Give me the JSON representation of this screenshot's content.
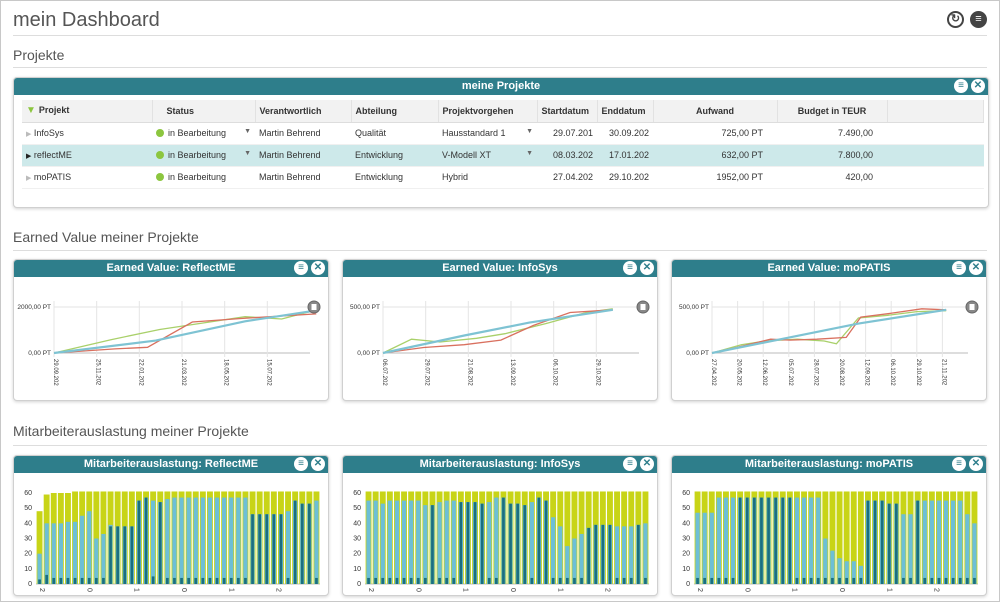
{
  "header": {
    "title": "mein Dashboard"
  },
  "sections": {
    "projects": "Projekte",
    "earned_value": "Earned Value meiner Projekte",
    "utilization": "Mitarbeiterauslastung meiner Projekte"
  },
  "projects_panel": {
    "title": "meine Projekte"
  },
  "table": {
    "columns": [
      "Projekt",
      "Status",
      "Verantwortlich",
      "Abteilung",
      "Projektvorgehen",
      "Startdatum",
      "Enddatum",
      "Aufwand",
      "Budget in TEUR"
    ],
    "rows": [
      {
        "projekt": "InfoSys",
        "status": "in Bearbeitung",
        "verantwortlich": "Martin Behrend",
        "abteilung": "Qualität",
        "vorgehen": "Hausstandard 1",
        "start": "29.07.201",
        "ende": "30.09.202",
        "aufwand": "725,00 PT",
        "budget": "7.490,00"
      },
      {
        "projekt": "reflectME",
        "status": "in Bearbeitung",
        "verantwortlich": "Martin Behrend",
        "abteilung": "Entwicklung",
        "vorgehen": "V-Modell XT",
        "start": "08.03.202",
        "ende": "17.01.202",
        "aufwand": "632,00 PT",
        "budget": "7.800,00"
      },
      {
        "projekt": "moPATIS",
        "status": "in Bearbeitung",
        "verantwortlich": "Martin Behrend",
        "abteilung": "Entwicklung",
        "vorgehen": "Hybrid",
        "start": "27.04.202",
        "ende": "29.10.202",
        "aufwand": "1952,00 PT",
        "budget": "420,00"
      }
    ]
  },
  "colors": {
    "accent": "#2e7e8b",
    "selected_row": "#cde9ea",
    "status_green": "#8cc63f",
    "series_blue": "#7ec3d3",
    "series_green": "#a9d06a",
    "series_red": "#d9705f",
    "util_yellow": "#c8d417",
    "util_light": "#6dbfd6",
    "util_dark": "#1b6f7e"
  },
  "icons": {
    "refresh": "refresh-icon",
    "menu": "menu-icon",
    "close": "close-icon",
    "filter": "filter-icon"
  },
  "ev_charts": [
    {
      "title": "Earned Value: ReflectME",
      "ytick": "2000,00 PT",
      "y0": "0,00 PT",
      "ymax": 2000,
      "xticks": [
        "29.09.202",
        "25.11.202",
        "22.01.202",
        "21.03.202",
        "18.05.202",
        "15.07.202"
      ],
      "x_extent": 6,
      "series": [
        {
          "points": [
            [
              0,
              0
            ],
            [
              1.4,
              580
            ],
            [
              2.6,
              1020
            ],
            [
              3.5,
              1260
            ],
            [
              4.7,
              1580
            ],
            [
              5.6,
              1480
            ],
            [
              6.45,
              1870
            ]
          ]
        },
        {
          "points": [
            [
              0,
              0
            ],
            [
              1.5,
              180
            ],
            [
              2.3,
              250
            ],
            [
              3.4,
              1350
            ],
            [
              4.6,
              1500
            ],
            [
              6.45,
              1700
            ]
          ]
        },
        {
          "points": [
            [
              0,
              0
            ],
            [
              2.5,
              540
            ],
            [
              4.7,
              1380
            ],
            [
              6.45,
              1850
            ]
          ]
        }
      ]
    },
    {
      "title": "Earned Value: InfoSys",
      "ytick": "500,00 PT",
      "y0": "0,00 PT",
      "ymax": 500,
      "xticks": [
        "06.07.202",
        "29.07.202",
        "21.08.202",
        "13.09.202",
        "06.10.202",
        "29.10.202"
      ],
      "x_extent": 6,
      "series": [
        {
          "points": [
            [
              0,
              0
            ],
            [
              0.7,
              150
            ],
            [
              1.4,
              120
            ],
            [
              2.3,
              160
            ],
            [
              3.0,
              210
            ],
            [
              4.0,
              320
            ],
            [
              5.0,
              440
            ],
            [
              5.65,
              480
            ]
          ]
        },
        {
          "points": [
            [
              0,
              0
            ],
            [
              1.0,
              60
            ],
            [
              2.0,
              90
            ],
            [
              2.9,
              140
            ],
            [
              3.7,
              300
            ],
            [
              4.6,
              440
            ],
            [
              5.65,
              470
            ]
          ]
        },
        {
          "points": [
            [
              0,
              0
            ],
            [
              2.0,
              190
            ],
            [
              3.6,
              330
            ],
            [
              5.65,
              470
            ]
          ]
        }
      ]
    },
    {
      "title": "Earned Value: moPATIS",
      "ytick": "500,00 PT",
      "y0": "0,00 PT",
      "ymax": 500,
      "xticks": [
        "27.04.202",
        "20.05.202",
        "12.06.202",
        "05.07.202",
        "28.07.202",
        "20.08.202",
        "12.09.202",
        "06.10.202",
        "29.10.202",
        "21.11.202"
      ],
      "x_extent": 10,
      "series": [
        {
          "points": [
            [
              0,
              0
            ],
            [
              1.2,
              90
            ],
            [
              2.2,
              130
            ],
            [
              3.5,
              150
            ],
            [
              4.6,
              130
            ],
            [
              5.1,
              100
            ],
            [
              6.0,
              380
            ],
            [
              7.2,
              410
            ],
            [
              8.4,
              450
            ],
            [
              9.6,
              460
            ]
          ]
        },
        {
          "points": [
            [
              0,
              0
            ],
            [
              1.0,
              60
            ],
            [
              2.4,
              150
            ],
            [
              3.2,
              140
            ],
            [
              4.3,
              150
            ],
            [
              5.5,
              170
            ],
            [
              6.1,
              390
            ],
            [
              7.3,
              430
            ],
            [
              8.6,
              480
            ],
            [
              9.6,
              470
            ]
          ]
        },
        {
          "points": [
            [
              0,
              0
            ],
            [
              3.0,
              160
            ],
            [
              6.0,
              320
            ],
            [
              9.6,
              470
            ]
          ]
        }
      ]
    }
  ],
  "util_charts": [
    {
      "title": "Mitarbeiterauslastung: ReflectME",
      "yticks": [
        "0",
        "10",
        "20",
        "30",
        "40",
        "50",
        "60"
      ],
      "ymax": 60,
      "xticks": [
        "2",
        "0",
        "1",
        "0",
        "1",
        "2"
      ],
      "bars": [
        [
          48,
          20,
          3
        ],
        [
          59,
          40,
          6
        ],
        [
          60,
          40,
          4
        ],
        [
          60,
          40,
          4
        ],
        [
          60,
          41,
          4
        ],
        [
          61,
          41,
          4
        ],
        [
          61,
          45,
          4
        ],
        [
          61,
          48,
          4
        ],
        [
          61,
          30,
          4
        ],
        [
          61,
          33,
          4
        ],
        [
          61,
          39,
          38
        ],
        [
          61,
          38,
          38
        ],
        [
          61,
          38,
          38
        ],
        [
          61,
          38,
          38
        ],
        [
          61,
          55,
          55
        ],
        [
          61,
          57,
          57
        ],
        [
          61,
          55,
          5
        ],
        [
          61,
          54,
          54
        ],
        [
          61,
          56,
          4
        ],
        [
          61,
          57,
          4
        ],
        [
          61,
          57,
          4
        ],
        [
          61,
          57,
          4
        ],
        [
          61,
          57,
          4
        ],
        [
          61,
          57,
          4
        ],
        [
          61,
          57,
          4
        ],
        [
          61,
          57,
          4
        ],
        [
          61,
          57,
          4
        ],
        [
          61,
          57,
          4
        ],
        [
          61,
          57,
          4
        ],
        [
          61,
          57,
          4
        ],
        [
          61,
          46,
          46
        ],
        [
          61,
          46,
          46
        ],
        [
          61,
          46,
          46
        ],
        [
          61,
          46,
          46
        ],
        [
          61,
          46,
          46
        ],
        [
          61,
          48,
          4
        ],
        [
          61,
          55,
          55
        ],
        [
          61,
          53,
          53
        ],
        [
          61,
          53,
          53
        ],
        [
          61,
          55,
          4
        ]
      ]
    },
    {
      "title": "Mitarbeiterauslastung: InfoSys",
      "yticks": [
        "0",
        "10",
        "20",
        "30",
        "40",
        "50",
        "60"
      ],
      "ymax": 60,
      "xticks": [
        "2",
        "0",
        "1",
        "0",
        "1",
        "2"
      ],
      "bars": [
        [
          61,
          55,
          4
        ],
        [
          61,
          55,
          4
        ],
        [
          61,
          53,
          4
        ],
        [
          61,
          55,
          4
        ],
        [
          61,
          55,
          4
        ],
        [
          61,
          55,
          4
        ],
        [
          61,
          55,
          4
        ],
        [
          61,
          55,
          4
        ],
        [
          61,
          52,
          4
        ],
        [
          61,
          52,
          52
        ],
        [
          61,
          54,
          4
        ],
        [
          61,
          55,
          4
        ],
        [
          61,
          55,
          4
        ],
        [
          61,
          54,
          54
        ],
        [
          61,
          54,
          54
        ],
        [
          61,
          54,
          54
        ],
        [
          61,
          53,
          53
        ],
        [
          61,
          54,
          4
        ],
        [
          61,
          57,
          4
        ],
        [
          61,
          57,
          57
        ],
        [
          61,
          53,
          53
        ],
        [
          61,
          53,
          53
        ],
        [
          61,
          52,
          52
        ],
        [
          61,
          54,
          4
        ],
        [
          61,
          57,
          57
        ],
        [
          61,
          55,
          55
        ],
        [
          61,
          44,
          4
        ],
        [
          61,
          38,
          4
        ],
        [
          61,
          25,
          4
        ],
        [
          61,
          30,
          4
        ],
        [
          61,
          33,
          4
        ],
        [
          61,
          37,
          37
        ],
        [
          61,
          39,
          39
        ],
        [
          61,
          39,
          39
        ],
        [
          61,
          39,
          39
        ],
        [
          61,
          38,
          4
        ],
        [
          61,
          38,
          4
        ],
        [
          61,
          38,
          4
        ],
        [
          61,
          39,
          39
        ],
        [
          61,
          40,
          4
        ]
      ]
    },
    {
      "title": "Mitarbeiterauslastung: moPATIS",
      "yticks": [
        "0",
        "10",
        "20",
        "30",
        "40",
        "50",
        "60"
      ],
      "ymax": 60,
      "xticks": [
        "2",
        "0",
        "1",
        "0",
        "1",
        "2"
      ],
      "bars": [
        [
          61,
          47,
          4
        ],
        [
          61,
          47,
          4
        ],
        [
          61,
          47,
          4
        ],
        [
          61,
          57,
          4
        ],
        [
          61,
          57,
          4
        ],
        [
          61,
          57,
          4
        ],
        [
          61,
          57,
          57
        ],
        [
          61,
          57,
          57
        ],
        [
          61,
          57,
          57
        ],
        [
          61,
          57,
          57
        ],
        [
          61,
          57,
          57
        ],
        [
          61,
          57,
          57
        ],
        [
          61,
          57,
          57
        ],
        [
          61,
          57,
          57
        ],
        [
          61,
          57,
          4
        ],
        [
          61,
          57,
          4
        ],
        [
          61,
          57,
          4
        ],
        [
          61,
          57,
          4
        ],
        [
          61,
          30,
          4
        ],
        [
          61,
          22,
          4
        ],
        [
          61,
          17,
          4
        ],
        [
          61,
          15,
          4
        ],
        [
          61,
          15,
          4
        ],
        [
          61,
          12,
          4
        ],
        [
          61,
          55,
          55
        ],
        [
          61,
          55,
          55
        ],
        [
          61,
          55,
          55
        ],
        [
          61,
          53,
          53
        ],
        [
          61,
          53,
          53
        ],
        [
          61,
          46,
          4
        ],
        [
          61,
          46,
          4
        ],
        [
          61,
          55,
          55
        ],
        [
          61,
          55,
          4
        ],
        [
          61,
          55,
          4
        ],
        [
          61,
          55,
          4
        ],
        [
          61,
          55,
          4
        ],
        [
          61,
          55,
          4
        ],
        [
          61,
          55,
          4
        ],
        [
          61,
          46,
          4
        ],
        [
          61,
          40,
          4
        ]
      ]
    }
  ]
}
